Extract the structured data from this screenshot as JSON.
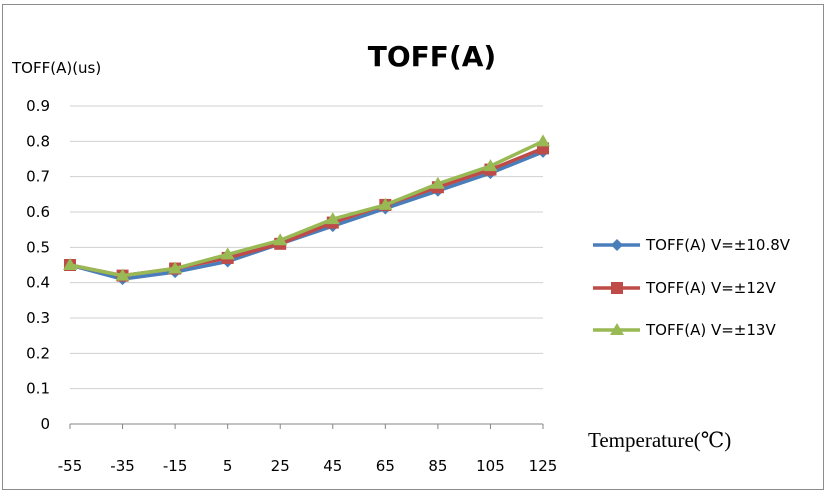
{
  "chart_data": {
    "type": "line",
    "title": "TOFF(A)",
    "ylabel": "TOFF(A)(us)",
    "xlabel": "Temperature(℃)",
    "categories": [
      "-55",
      "-35",
      "-15",
      "5",
      "25",
      "45",
      "65",
      "85",
      "105",
      "125"
    ],
    "ylim": [
      0,
      0.9
    ],
    "yticks": [
      "0",
      "0.1",
      "0.2",
      "0.3",
      "0.4",
      "0.5",
      "0.6",
      "0.7",
      "0.8",
      "0.9"
    ],
    "grid": true,
    "legend_position": "right",
    "series": [
      {
        "name": "TOFF(A) V=±10.8V",
        "color": "#4a7ebb",
        "marker": "diamond",
        "values": [
          0.45,
          0.41,
          0.43,
          0.46,
          0.51,
          0.56,
          0.61,
          0.66,
          0.71,
          0.77
        ]
      },
      {
        "name": "TOFF(A) V=±12V",
        "color": "#be4b48",
        "marker": "square",
        "values": [
          0.45,
          0.42,
          0.44,
          0.47,
          0.51,
          0.57,
          0.62,
          0.67,
          0.72,
          0.78
        ]
      },
      {
        "name": "TOFF(A) V=±13V",
        "color": "#98b954",
        "marker": "triangle",
        "values": [
          0.45,
          0.42,
          0.44,
          0.48,
          0.52,
          0.58,
          0.62,
          0.68,
          0.73,
          0.8
        ]
      }
    ]
  }
}
